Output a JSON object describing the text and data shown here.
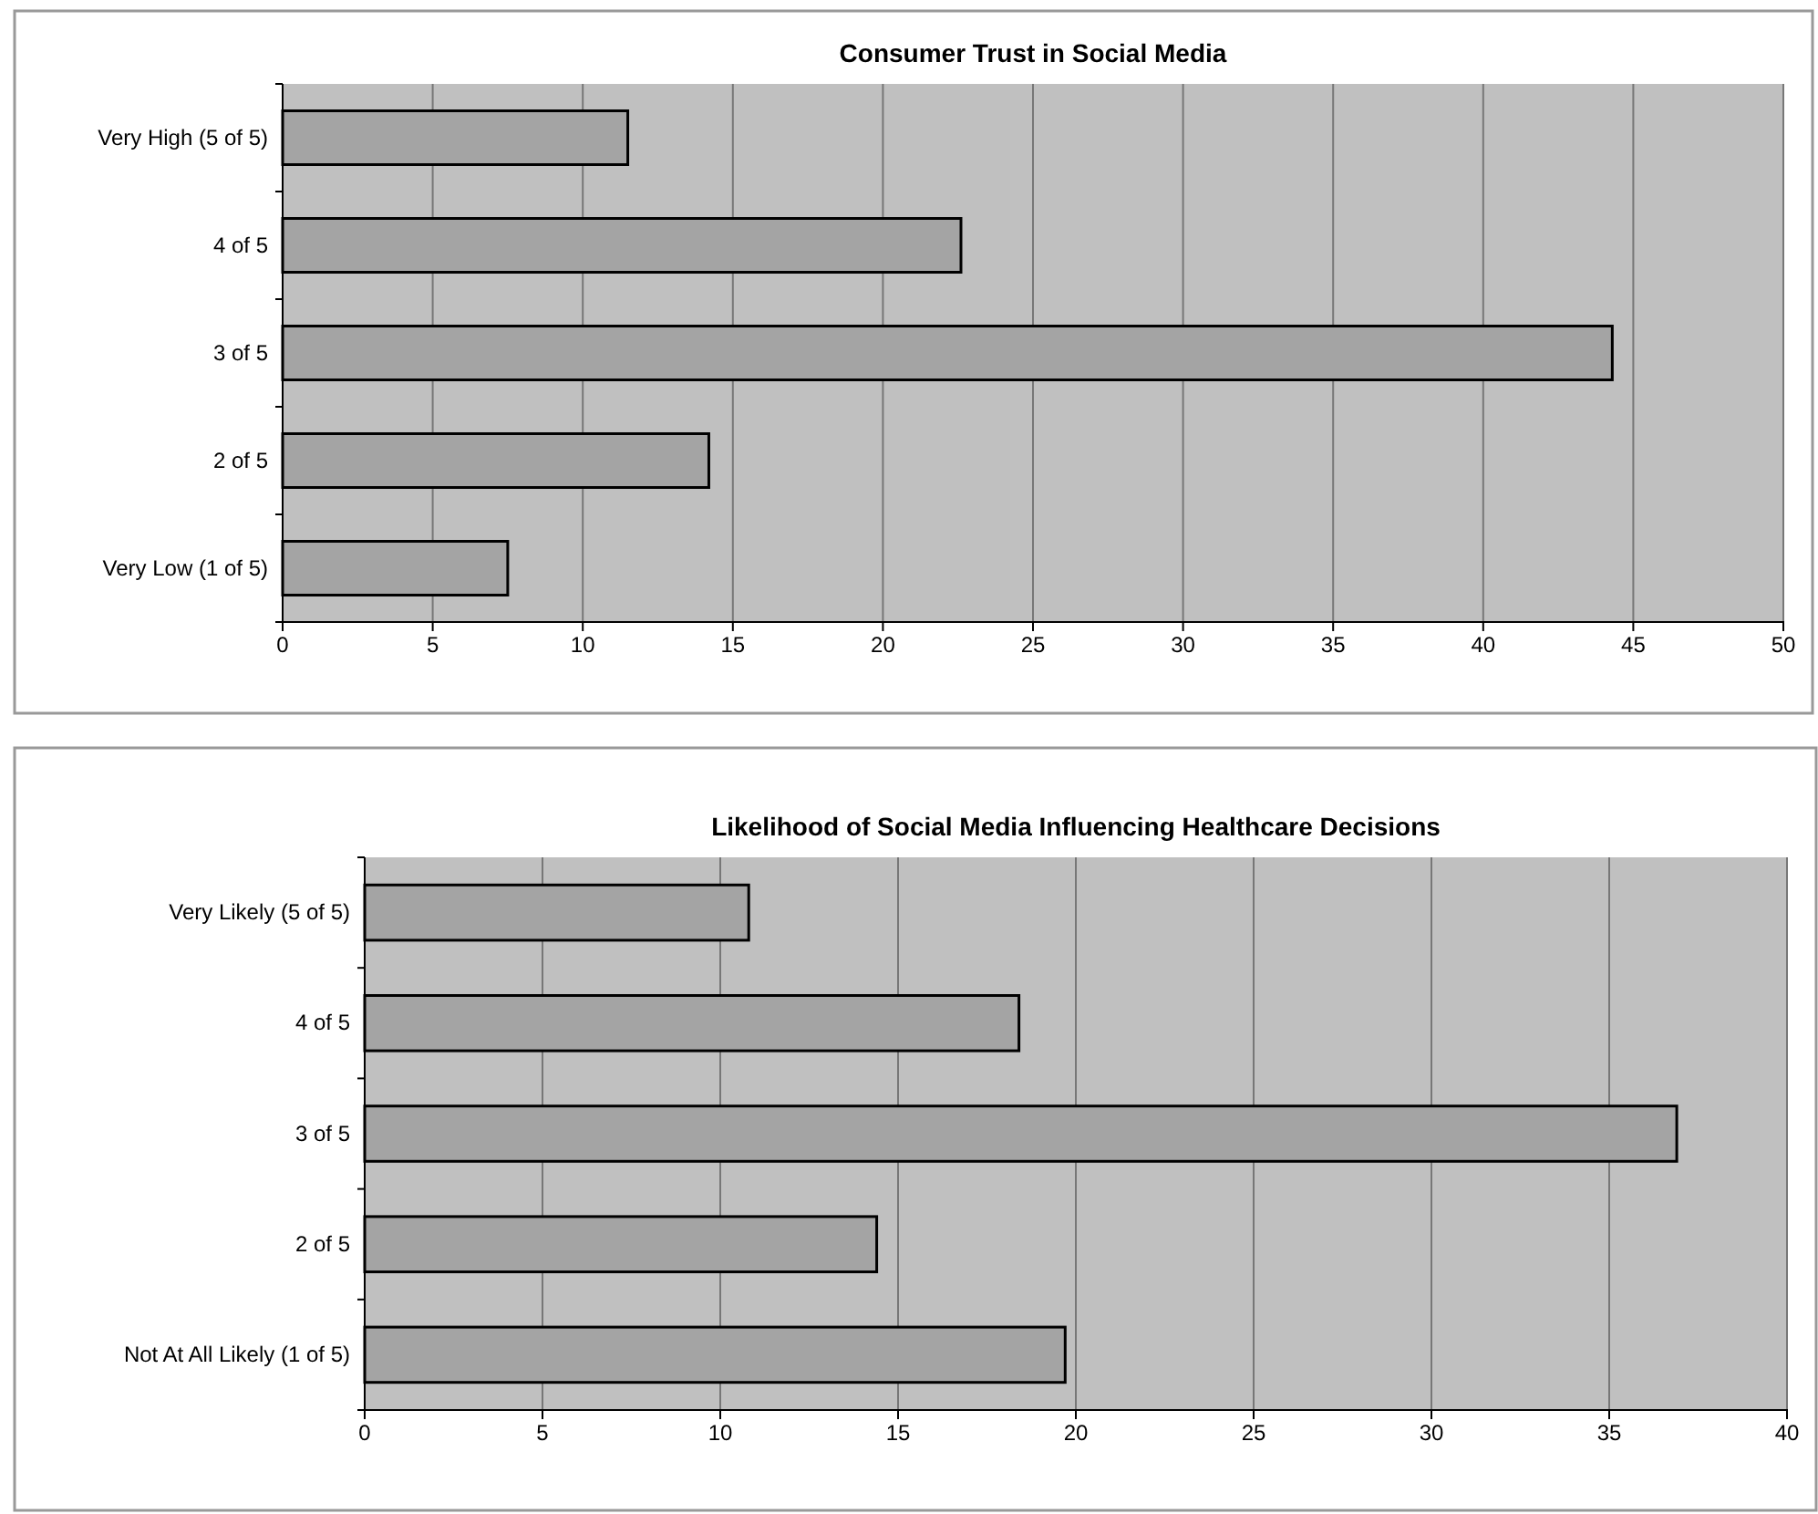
{
  "chart_data": [
    {
      "type": "bar",
      "orientation": "horizontal",
      "title": "Consumer Trust in Social Media",
      "categories": [
        "Very High (5 of 5)",
        "4 of 5",
        "3 of 5",
        "2 of 5",
        "Very Low (1 of 5)"
      ],
      "values": [
        11.5,
        22.6,
        44.3,
        14.2,
        7.5
      ],
      "color": "#a4a4a4",
      "xlim": [
        0,
        50
      ],
      "xticks": [
        0,
        5,
        10,
        15,
        20,
        25,
        30,
        35,
        40,
        45,
        50
      ],
      "grid": "x"
    },
    {
      "type": "bar",
      "orientation": "horizontal",
      "title": "Likelihood of Social Media Influencing Healthcare Decisions",
      "categories": [
        "Very Likely (5 of 5)",
        "4 of 5",
        "3 of 5",
        "2 of 5",
        "Not At All Likely (1 of 5)"
      ],
      "values": [
        10.8,
        18.4,
        36.9,
        14.4,
        19.7
      ],
      "color": "#a4a4a4",
      "xlim": [
        0,
        40
      ],
      "xticks": [
        0,
        5,
        10,
        15,
        20,
        25,
        30,
        35,
        40
      ],
      "grid": "x"
    }
  ]
}
